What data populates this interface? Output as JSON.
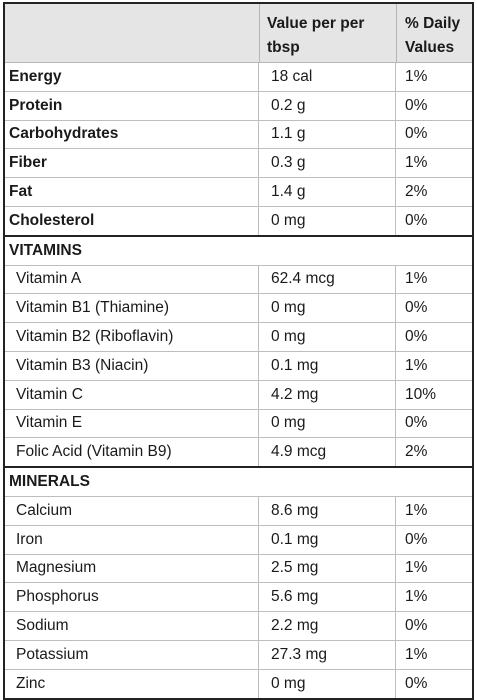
{
  "header": {
    "col1": "",
    "col2_line1": "Value per per",
    "col2_line2": "tbsp",
    "col3_line1": "% Daily",
    "col3_line2": "Values"
  },
  "macros": [
    {
      "name": "Energy",
      "value": "18 cal",
      "dv": "1%"
    },
    {
      "name": "Protein",
      "value": "0.2 g",
      "dv": "0%"
    },
    {
      "name": "Carbohydrates",
      "value": "1.1 g",
      "dv": "0%"
    },
    {
      "name": "Fiber",
      "value": "0.3 g",
      "dv": "1%"
    },
    {
      "name": "Fat",
      "value": "1.4 g",
      "dv": "2%"
    },
    {
      "name": "Cholesterol",
      "value": "0 mg",
      "dv": "0%"
    }
  ],
  "vitamins": {
    "title": "VITAMINS",
    "items": [
      {
        "name": "Vitamin A",
        "value": "62.4 mcg",
        "dv": "1%"
      },
      {
        "name": "Vitamin B1 (Thiamine)",
        "value": "0 mg",
        "dv": "0%"
      },
      {
        "name": "Vitamin B2 (Riboflavin)",
        "value": "0 mg",
        "dv": "0%"
      },
      {
        "name": "Vitamin B3 (Niacin)",
        "value": "0.1 mg",
        "dv": "1%"
      },
      {
        "name": "Vitamin C",
        "value": "4.2 mg",
        "dv": "10%"
      },
      {
        "name": "Vitamin E",
        "value": "0 mg",
        "dv": "0%"
      },
      {
        "name": "Folic Acid (Vitamin B9)",
        "value": "4.9 mcg",
        "dv": "2%"
      }
    ]
  },
  "minerals": {
    "title": "MINERALS",
    "items": [
      {
        "name": "Calcium",
        "value": "8.6 mg",
        "dv": "1%"
      },
      {
        "name": "Iron",
        "value": "0.1 mg",
        "dv": "0%"
      },
      {
        "name": "Magnesium",
        "value": "2.5 mg",
        "dv": "1%"
      },
      {
        "name": "Phosphorus",
        "value": "5.6 mg",
        "dv": "1%"
      },
      {
        "name": "Sodium",
        "value": "2.2 mg",
        "dv": "0%"
      },
      {
        "name": "Potassium",
        "value": "27.3 mg",
        "dv": "1%"
      },
      {
        "name": "Zinc",
        "value": "0 mg",
        "dv": "0%"
      }
    ]
  }
}
